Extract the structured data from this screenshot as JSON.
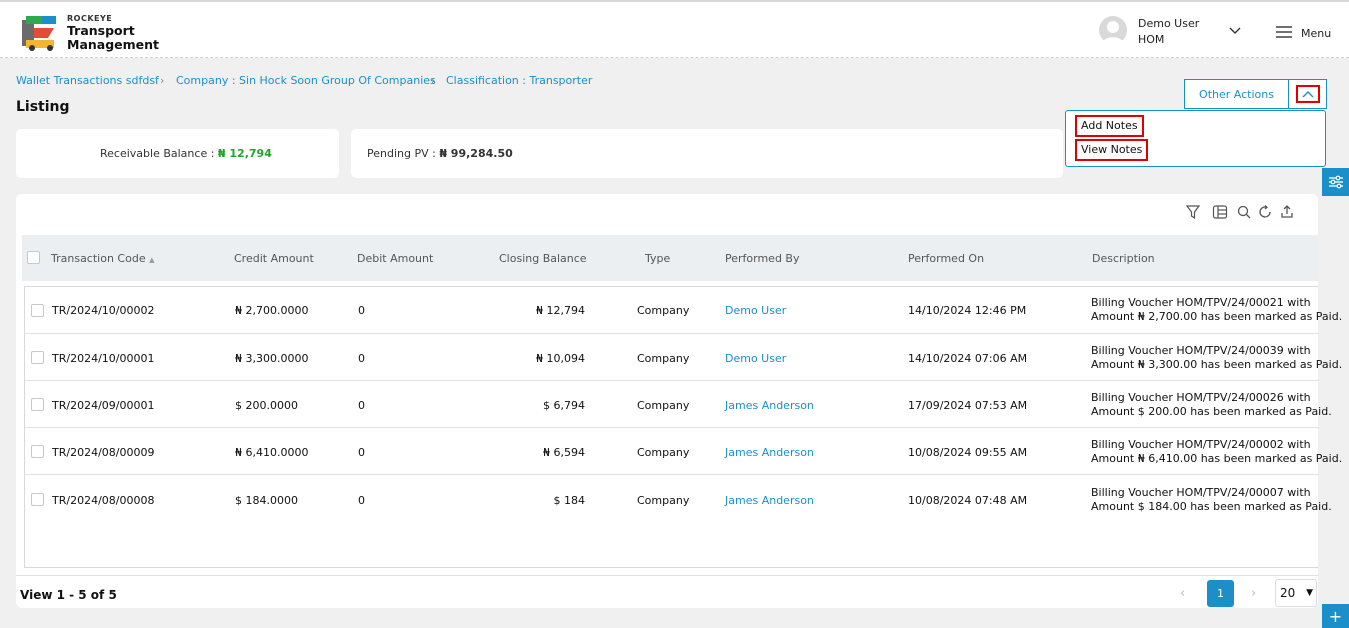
{
  "header": {
    "brand_small": "ROCKEYE",
    "brand_line1": "Transport",
    "brand_line2": "Management",
    "user_name": "Demo User",
    "user_org": "HOM",
    "menu_label": "Menu"
  },
  "breadcrumb": [
    "Wallet Transactions sdfdsf",
    "Company : Sin Hock Soon Group Of Companies",
    "Classification : Transporter"
  ],
  "page_title": "Listing",
  "actions": {
    "other_actions_label": "Other Actions",
    "menu_items": [
      "Add Notes",
      "View Notes"
    ]
  },
  "balances": {
    "receivable_label": "Receivable Balance : ",
    "receivable_value": "₦ 12,794",
    "pending_label": "Pending PV : ",
    "pending_value": "₦ 99,284.50"
  },
  "table": {
    "columns": [
      "Transaction Code",
      "Credit Amount",
      "Debit Amount",
      "Closing Balance",
      "Type",
      "Performed By",
      "Performed On",
      "Description"
    ],
    "rows": [
      {
        "code": "TR/2024/10/00002",
        "credit": "₦ 2,700.0000",
        "debit": "0",
        "closing": "₦ 12,794",
        "type": "Company",
        "by": "Demo User",
        "on": "14/10/2024 12:46 PM",
        "desc1": "Billing Voucher HOM/TPV/24/00021 with",
        "desc2": "Amount ₦ 2,700.00 has been marked as Paid."
      },
      {
        "code": "TR/2024/10/00001",
        "credit": "₦ 3,300.0000",
        "debit": "0",
        "closing": "₦ 10,094",
        "type": "Company",
        "by": "Demo User",
        "on": "14/10/2024 07:06 AM",
        "desc1": "Billing Voucher HOM/TPV/24/00039 with",
        "desc2": "Amount ₦ 3,300.00 has been marked as Paid."
      },
      {
        "code": "TR/2024/09/00001",
        "credit": "$ 200.0000",
        "debit": "0",
        "closing": "$ 6,794",
        "type": "Company",
        "by": "James Anderson",
        "on": "17/09/2024 07:53 AM",
        "desc1": "Billing Voucher HOM/TPV/24/00026 with",
        "desc2": "Amount $ 200.00 has been marked as Paid."
      },
      {
        "code": "TR/2024/08/00009",
        "credit": "₦ 6,410.0000",
        "debit": "0",
        "closing": "₦ 6,594",
        "type": "Company",
        "by": "James Anderson",
        "on": "10/08/2024 09:55 AM",
        "desc1": "Billing Voucher HOM/TPV/24/00002 with",
        "desc2": "Amount ₦ 6,410.00 has been marked as Paid."
      },
      {
        "code": "TR/2024/08/00008",
        "credit": "$ 184.0000",
        "debit": "0",
        "closing": "$ 184",
        "type": "Company",
        "by": "James Anderson",
        "on": "10/08/2024 07:48 AM",
        "desc1": "Billing Voucher HOM/TPV/24/00007 with",
        "desc2": "Amount $ 184.00 has been marked as Paid."
      }
    ]
  },
  "pagination": {
    "view_text": "View 1 - 5 of 5",
    "current_page": "1",
    "prev": "‹",
    "next": "›",
    "page_size": "20"
  },
  "icons": [
    "filter-icon",
    "columns-icon",
    "search-icon",
    "refresh-icon",
    "export-icon",
    "settings-sliders-icon",
    "add-icon"
  ],
  "colors": {
    "accent": "#1a8fc9",
    "positive": "#22a32b",
    "highlight": "#e00000"
  }
}
